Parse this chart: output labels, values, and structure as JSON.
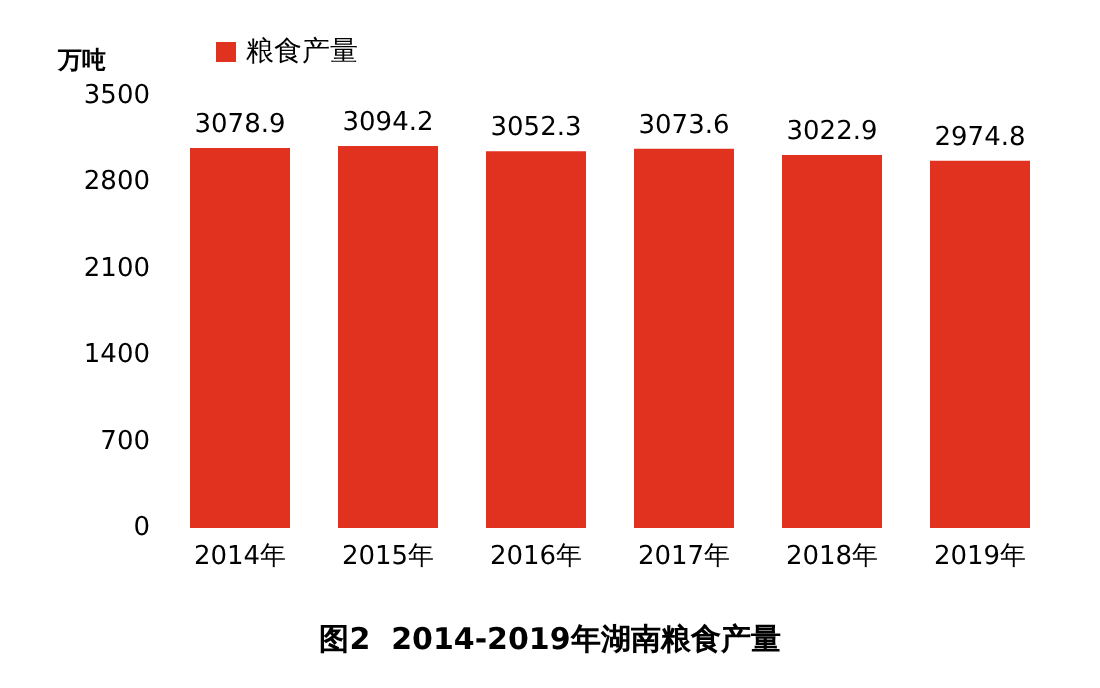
{
  "chart_data": {
    "type": "bar",
    "title": "图2  2014-2019年湖南粮食产量",
    "ylabel": "万吨",
    "categories": [
      "2014年",
      "2015年",
      "2016年",
      "2017年",
      "2018年",
      "2019年"
    ],
    "series": [
      {
        "name": "粮食产量",
        "color": "#e0321f",
        "values": [
          3078.9,
          3094.2,
          3052.3,
          3073.6,
          3022.9,
          2974.8
        ]
      }
    ],
    "ylim": [
      0,
      3500
    ],
    "yticks": [
      0,
      700,
      1400,
      2100,
      2800,
      3500
    ],
    "grid": false,
    "legend": "top left",
    "data_labels": true
  }
}
